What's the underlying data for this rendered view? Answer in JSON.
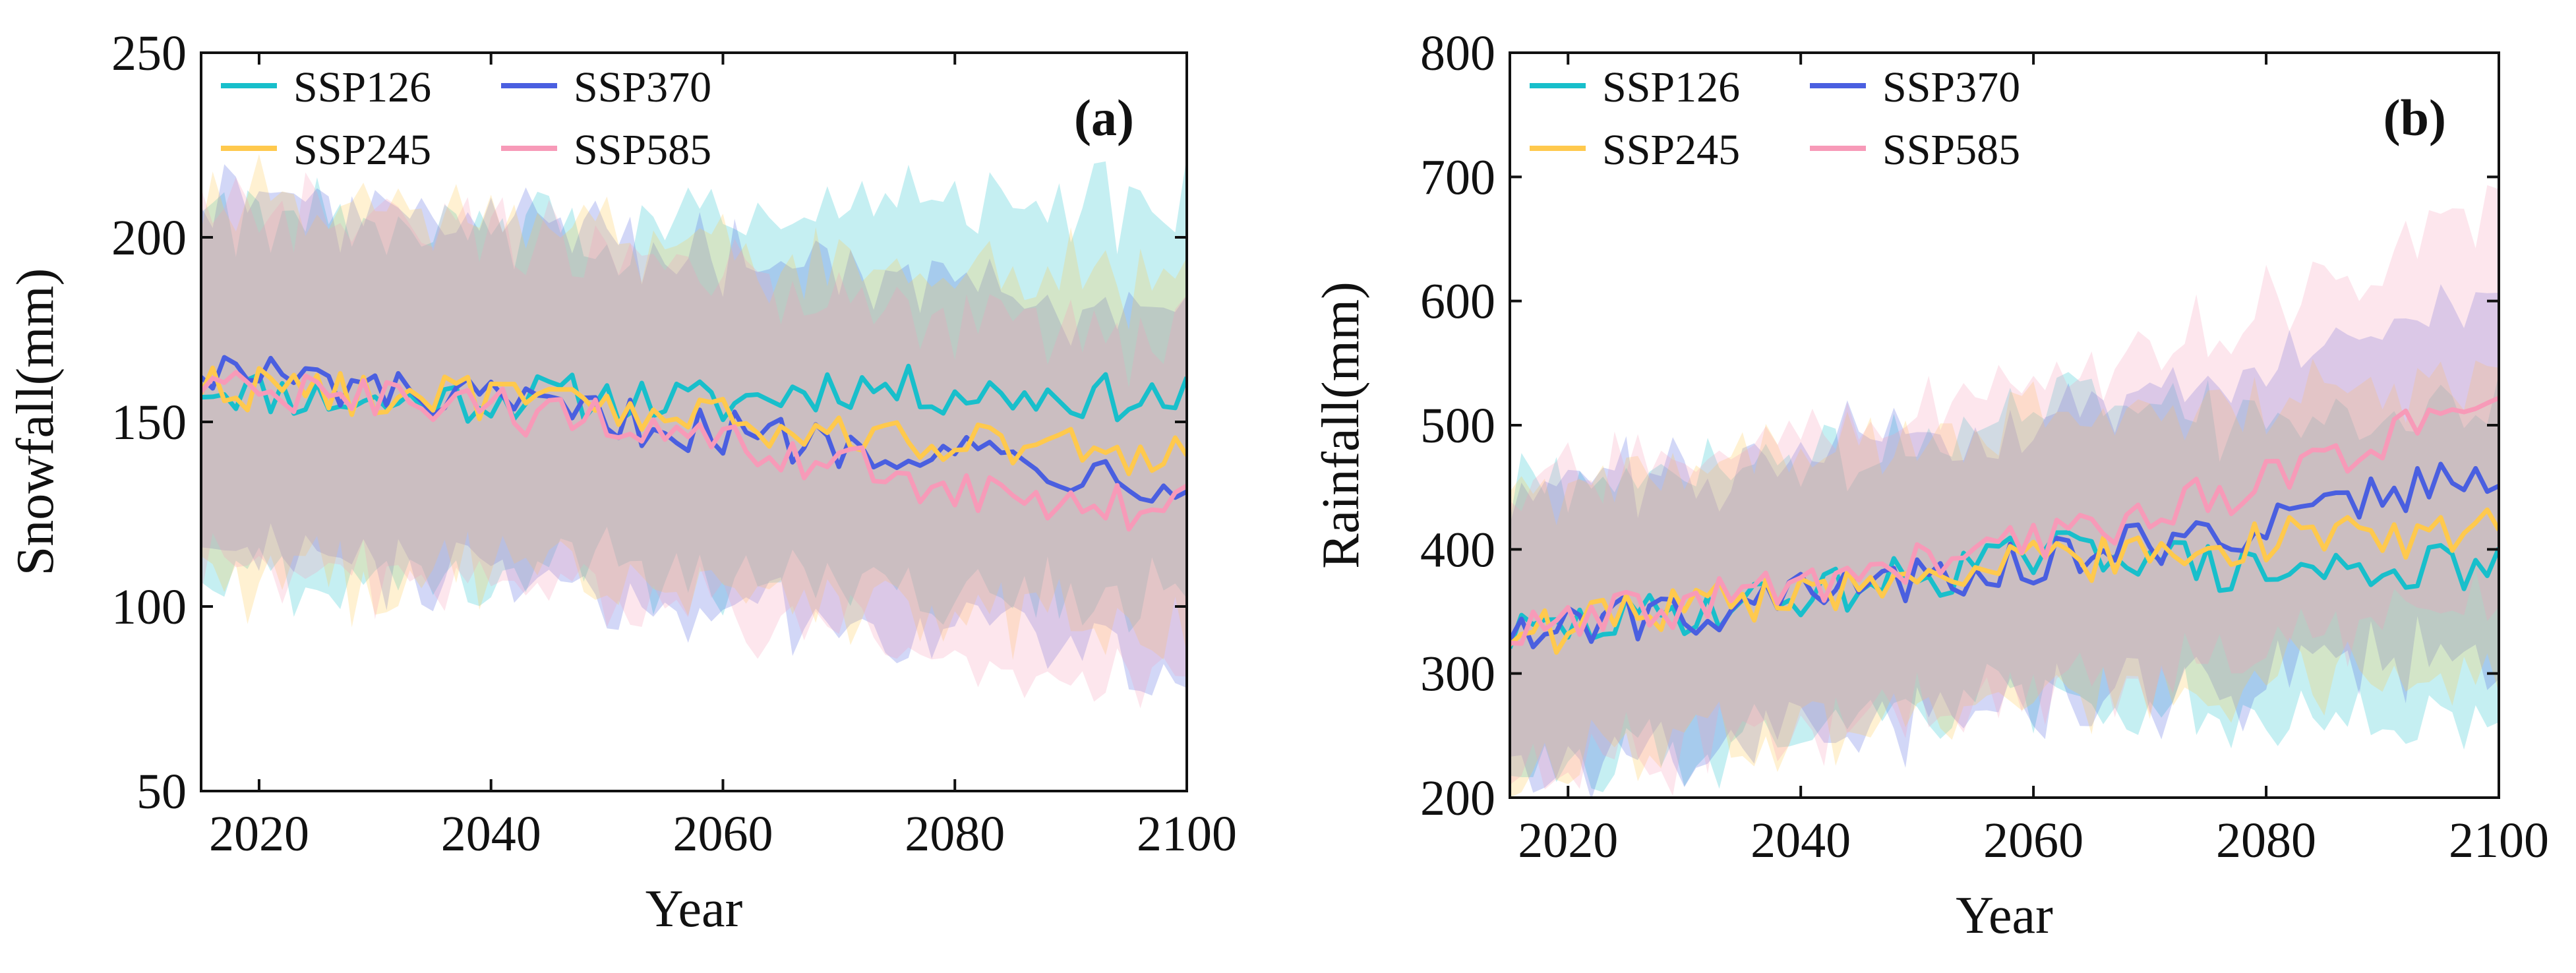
{
  "figure": {
    "panels": [
      "a",
      "b"
    ]
  },
  "chart_data": [
    {
      "type": "line",
      "panel_label": "(a)",
      "xlabel": "Year",
      "ylabel": "Snowfall(mm)",
      "xlim": [
        2015,
        2100
      ],
      "ylim": [
        50,
        250
      ],
      "xticks": [
        2020,
        2040,
        2060,
        2080,
        2100
      ],
      "yticks": [
        50,
        100,
        150,
        200,
        250
      ],
      "legend_position": "top-left",
      "band": "shaded range around each series",
      "series": [
        {
          "name": "SSP126",
          "color": "#18BFCB",
          "knots": [
            [
              2015,
              160
            ],
            [
              2030,
              155
            ],
            [
              2045,
              157
            ],
            [
              2060,
              155
            ],
            [
              2070,
              160
            ],
            [
              2080,
              158
            ],
            [
              2090,
              157
            ],
            [
              2100,
              156
            ]
          ],
          "band_knots": [
            [
              2015,
              48
            ],
            [
              2050,
              45
            ],
            [
              2070,
              50
            ],
            [
              2085,
              52
            ],
            [
              2100,
              50
            ]
          ]
        },
        {
          "name": "SSP370",
          "color": "#4A5FE0",
          "knots": [
            [
              2015,
              165
            ],
            [
              2030,
              158
            ],
            [
              2045,
              153
            ],
            [
              2060,
              147
            ],
            [
              2070,
              144
            ],
            [
              2080,
              143
            ],
            [
              2090,
              137
            ],
            [
              2100,
              134
            ]
          ],
          "band_knots": [
            [
              2015,
              48
            ],
            [
              2060,
              45
            ],
            [
              2100,
              45
            ]
          ]
        },
        {
          "name": "SSP245",
          "color": "#FFC94D",
          "knots": [
            [
              2015,
              160
            ],
            [
              2030,
              158
            ],
            [
              2045,
              155
            ],
            [
              2060,
              150
            ],
            [
              2070,
              146
            ],
            [
              2080,
              146
            ],
            [
              2090,
              142
            ],
            [
              2100,
              140
            ]
          ],
          "band_knots": [
            [
              2015,
              50
            ],
            [
              2060,
              45
            ],
            [
              2100,
              46
            ]
          ]
        },
        {
          "name": "SSP585",
          "color": "#F79AB8",
          "knots": [
            [
              2015,
              160
            ],
            [
              2030,
              155
            ],
            [
              2045,
              152
            ],
            [
              2060,
              143
            ],
            [
              2070,
              138
            ],
            [
              2080,
              133
            ],
            [
              2090,
              126
            ],
            [
              2100,
              128
            ]
          ],
          "band_knots": [
            [
              2015,
              48
            ],
            [
              2060,
              44
            ],
            [
              2100,
              45
            ]
          ]
        }
      ]
    },
    {
      "type": "line",
      "panel_label": "(b)",
      "xlabel": "Year",
      "ylabel": "Rainfall(mm)",
      "xlim": [
        2015,
        2100
      ],
      "ylim": [
        200,
        800
      ],
      "xticks": [
        2020,
        2040,
        2060,
        2080,
        2100
      ],
      "yticks": [
        200,
        300,
        400,
        500,
        600,
        700,
        800
      ],
      "legend_position": "top-left",
      "band": "shaded range around each series",
      "series": [
        {
          "name": "SSP126",
          "color": "#18BFCB",
          "knots": [
            [
              2015,
              330
            ],
            [
              2030,
              350
            ],
            [
              2045,
              370
            ],
            [
              2060,
              395
            ],
            [
              2068,
              400
            ],
            [
              2078,
              380
            ],
            [
              2090,
              385
            ],
            [
              2100,
              385
            ]
          ],
          "band_knots": [
            [
              2015,
              110
            ],
            [
              2060,
              110
            ],
            [
              2100,
              120
            ]
          ]
        },
        {
          "name": "SSP370",
          "color": "#4A5FE0",
          "knots": [
            [
              2015,
              335
            ],
            [
              2030,
              350
            ],
            [
              2045,
              370
            ],
            [
              2060,
              390
            ],
            [
              2070,
              405
            ],
            [
              2080,
              420
            ],
            [
              2090,
              445
            ],
            [
              2100,
              462
            ]
          ],
          "band_knots": [
            [
              2015,
              110
            ],
            [
              2060,
              115
            ],
            [
              2100,
              135
            ]
          ]
        },
        {
          "name": "SSP245",
          "color": "#FFC94D",
          "knots": [
            [
              2015,
              330
            ],
            [
              2030,
              352
            ],
            [
              2045,
              372
            ],
            [
              2060,
              388
            ],
            [
              2070,
              398
            ],
            [
              2080,
              408
            ],
            [
              2090,
              412
            ],
            [
              2100,
              415
            ]
          ],
          "band_knots": [
            [
              2015,
              110
            ],
            [
              2060,
              110
            ],
            [
              2100,
              115
            ]
          ]
        },
        {
          "name": "SSP585",
          "color": "#F79AB8",
          "knots": [
            [
              2015,
              330
            ],
            [
              2030,
              355
            ],
            [
              2045,
              380
            ],
            [
              2060,
              405
            ],
            [
              2070,
              430
            ],
            [
              2080,
              455
            ],
            [
              2090,
              490
            ],
            [
              2100,
              510
            ]
          ],
          "band_knots": [
            [
              2015,
              110
            ],
            [
              2060,
              120
            ],
            [
              2100,
              150
            ]
          ]
        }
      ]
    }
  ]
}
